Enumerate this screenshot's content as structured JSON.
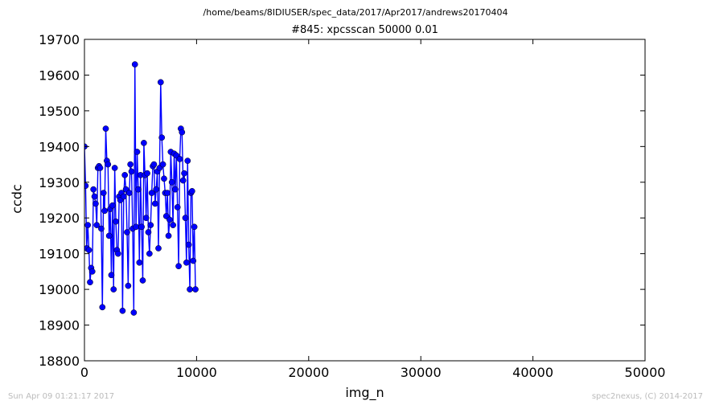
{
  "header": {
    "suptitle": "/home/beams/8IDIUSER/spec_data/2017/Apr2017/andrews20170404"
  },
  "footer": {
    "timestamp": "Sun Apr 09 01:21:17 2017",
    "credit": "spec2nexus, (C) 2014-2017"
  },
  "chart_data": {
    "type": "line",
    "title": "#845: xpcsscan 50000 0.01",
    "xlabel": "img_n",
    "ylabel": "ccdc",
    "xlim": [
      0,
      50000
    ],
    "ylim": [
      18800,
      19700
    ],
    "xticks": [
      0,
      10000,
      20000,
      30000,
      40000,
      50000
    ],
    "yticks": [
      18800,
      18900,
      19000,
      19100,
      19200,
      19300,
      19400,
      19500,
      19600,
      19700
    ],
    "grid": false,
    "series_color": "#0000ff",
    "marker": "circle",
    "x_start": 0,
    "x_step": 100,
    "series": [
      {
        "values": [
          19400,
          19290,
          19115,
          19180,
          19110,
          19020,
          19060,
          19050,
          19280,
          19260,
          19240,
          19180,
          19340,
          19345,
          19340,
          19170,
          18950,
          19270,
          19220,
          19450,
          19360,
          19350,
          19150,
          19225,
          19040,
          19235,
          19000,
          19340,
          19190,
          19110,
          19100,
          19260,
          19250,
          19270,
          18940,
          19260,
          19320,
          19280,
          19160,
          19010,
          19270,
          19350,
          19330,
          19170,
          18935,
          19630,
          19175,
          19385,
          19280,
          19075,
          19320,
          19175,
          19025,
          19410,
          19320,
          19200,
          19325,
          19160,
          19100,
          19180,
          19270,
          19345,
          19350,
          19240,
          19280,
          19330,
          19115,
          19340,
          19580,
          19425,
          19350,
          19310,
          19270,
          19205,
          19270,
          19150,
          19195,
          19385,
          19300,
          19180,
          19380,
          19280,
          19375,
          19230,
          19065,
          19365,
          19450,
          19440,
          19305,
          19325,
          19200,
          19075,
          19360,
          19125,
          19000,
          19270,
          19275,
          19080,
          19175,
          19000
        ]
      }
    ]
  }
}
